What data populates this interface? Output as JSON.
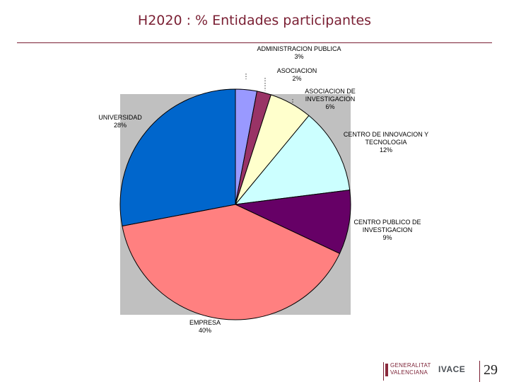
{
  "slide": {
    "title": "H2020 : % Entidades participantes",
    "page_number": "29"
  },
  "logos": {
    "generalitat_text": "GENERALITAT VALENCIANA",
    "ivace_text": "IVACE"
  },
  "colors": {
    "title": "#7a1f33",
    "plot_background": "#c0c0c0"
  },
  "chart_data": {
    "type": "pie",
    "title": "",
    "slices": [
      {
        "label": "ADMINISTRACION PUBLICA",
        "value": 3,
        "value_label": "3%",
        "color": "#9999ff"
      },
      {
        "label": "ASOCIACION",
        "value": 2,
        "value_label": "2%",
        "color": "#993366"
      },
      {
        "label": "ASOCIACION DE INVESTIGACION",
        "value": 6,
        "value_label": "6%",
        "color": "#ffffcc"
      },
      {
        "label": "CENTRO DE INNOVACION Y TECNOLOGIA",
        "value": 12,
        "value_label": "12%",
        "color": "#ccffff"
      },
      {
        "label": "CENTRO PUBLICO DE INVESTIGACION",
        "value": 9,
        "value_label": "9%",
        "color": "#660066"
      },
      {
        "label": "EMPRESA",
        "value": 40,
        "value_label": "40%",
        "color": "#ff8080"
      },
      {
        "label": "UNIVERSIDAD",
        "value": 28,
        "value_label": "28%",
        "color": "#0066cc"
      }
    ],
    "start": "12 o'clock",
    "direction": "clockwise",
    "labels": "outside"
  }
}
